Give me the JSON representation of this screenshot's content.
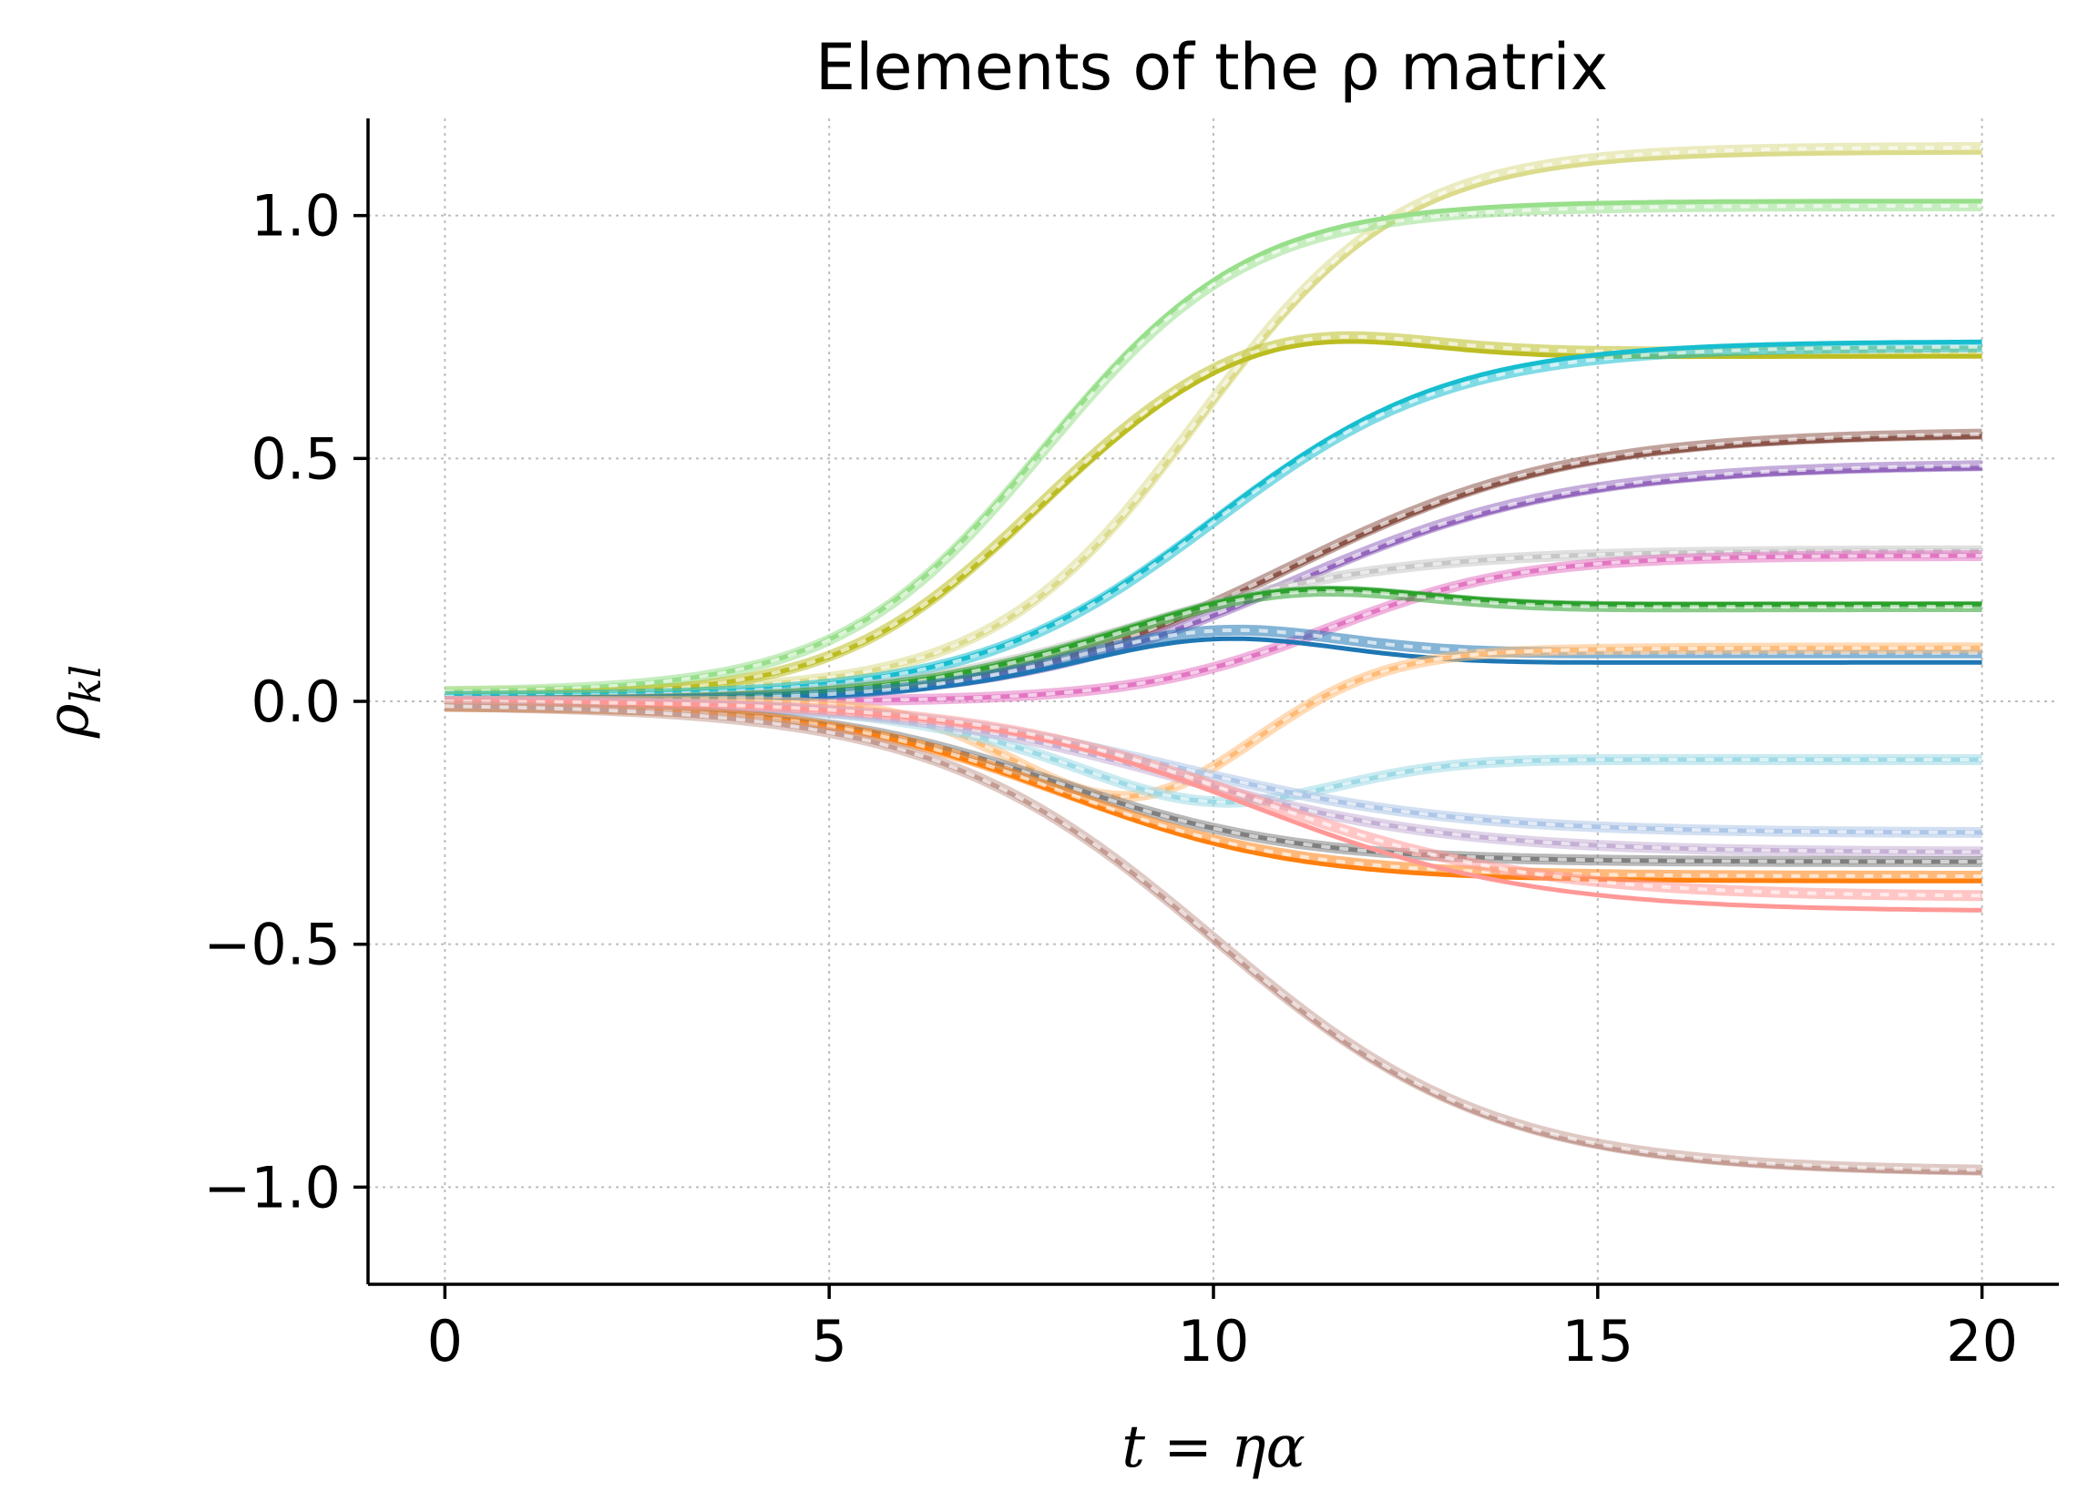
{
  "chart_data": {
    "type": "line",
    "title": "Elements of the ρ matrix",
    "xlabel": "t = ηα",
    "ylabel": "ρ",
    "ylabel_subscript": "kl",
    "xlim": [
      -1,
      21
    ],
    "ylim": [
      -1.2,
      1.2
    ],
    "xticks": [
      0,
      5,
      10,
      15,
      20
    ],
    "xtick_labels": [
      "0",
      "5",
      "10",
      "15",
      "20"
    ],
    "yticks": [
      -1.0,
      -0.5,
      0.0,
      0.5,
      1.0
    ],
    "ytick_labels": [
      "−1.0",
      "−0.5",
      "0.0",
      "0.5",
      "1.0"
    ],
    "grid": true,
    "x_range": [
      0,
      20
    ],
    "series": [
      {
        "name": "light olive",
        "color": "#dbdb8d",
        "start": 0.02,
        "final": 1.13,
        "midpoint": 9.8,
        "steepness": 0.75,
        "dashed_final": 1.14
      },
      {
        "name": "light green",
        "color": "#98df8a",
        "start": 0.02,
        "final": 1.03,
        "midpoint": 7.8,
        "steepness": 0.75,
        "dashed_final": 1.02
      },
      {
        "name": "olive",
        "color": "#bcbd22",
        "start": 0.01,
        "final": 0.71,
        "midpoint": 7.5,
        "steepness": 0.8,
        "dashed_final": 0.72,
        "bump": 0.06,
        "bump_center": 11
      },
      {
        "name": "cyan",
        "color": "#17becf",
        "start": 0.01,
        "final": 0.74,
        "midpoint": 10.0,
        "steepness": 0.65,
        "dashed_final": 0.73
      },
      {
        "name": "brown",
        "color": "#8c564b",
        "start": 0.0,
        "final": 0.545,
        "midpoint": 11.0,
        "steepness": 0.55,
        "dashed_final": 0.55
      },
      {
        "name": "purple",
        "color": "#9467bd",
        "start": 0.0,
        "final": 0.48,
        "midpoint": 11.0,
        "steepness": 0.55,
        "dashed_final": 0.485
      },
      {
        "name": "gray",
        "color": "#c7c7c7",
        "start": 0.0,
        "final": 0.31,
        "midpoint": 9.0,
        "steepness": 0.6,
        "dashed_final": 0.31
      },
      {
        "name": "pink",
        "color": "#e377c2",
        "start": 0.0,
        "final": 0.3,
        "midpoint": 11.5,
        "steepness": 0.8,
        "dashed_final": 0.3
      },
      {
        "name": "green",
        "color": "#2ca02c",
        "start": 0.0,
        "final": 0.2,
        "midpoint": 8.0,
        "steepness": 0.7,
        "dashed_final": 0.195,
        "bump": 0.05,
        "bump_center": 11
      },
      {
        "name": "blue",
        "color": "#1f77b4",
        "start": 0.0,
        "final": 0.08,
        "midpoint": 7.5,
        "steepness": 0.7,
        "dashed_final": 0.1,
        "bump": 0.06,
        "bump_center": 10
      },
      {
        "name": "light orange",
        "color": "#ffbb78",
        "start": 0.0,
        "final": 0.11,
        "midpoint": 10.5,
        "steepness": 0.8,
        "dashed_final": 0.11,
        "bump": -0.22,
        "bump_center": 9
      },
      {
        "name": "light cyan",
        "color": "#9edae5",
        "start": 0.0,
        "final": -0.12,
        "midpoint": 7.0,
        "steepness": 0.7,
        "dashed_final": -0.12,
        "bump": -0.1,
        "bump_center": 10
      },
      {
        "name": "light blue",
        "color": "#aec7e8",
        "start": 0.0,
        "final": -0.27,
        "midpoint": 9.5,
        "steepness": 0.55,
        "dashed_final": -0.27
      },
      {
        "name": "light purple",
        "color": "#c5b0d5",
        "start": 0.0,
        "final": -0.31,
        "midpoint": 9.5,
        "steepness": 0.55,
        "dashed_final": -0.31
      },
      {
        "name": "dark gray",
        "color": "#7f7f7f",
        "start": -0.01,
        "final": -0.33,
        "midpoint": 8.0,
        "steepness": 0.65,
        "dashed_final": -0.33
      },
      {
        "name": "orange",
        "color": "#ff7f0e",
        "start": -0.01,
        "final": -0.37,
        "midpoint": 8.0,
        "steepness": 0.65,
        "dashed_final": -0.36
      },
      {
        "name": "salmon",
        "color": "#ff9896",
        "start": 0.0,
        "final": -0.43,
        "midpoint": 10.5,
        "steepness": 0.55,
        "dashed_final": -0.4
      },
      {
        "name": "rosy brown",
        "color": "#c49c94",
        "start": -0.01,
        "final": -0.97,
        "midpoint": 10.0,
        "steepness": 0.55,
        "dashed_final": -0.965
      }
    ]
  }
}
